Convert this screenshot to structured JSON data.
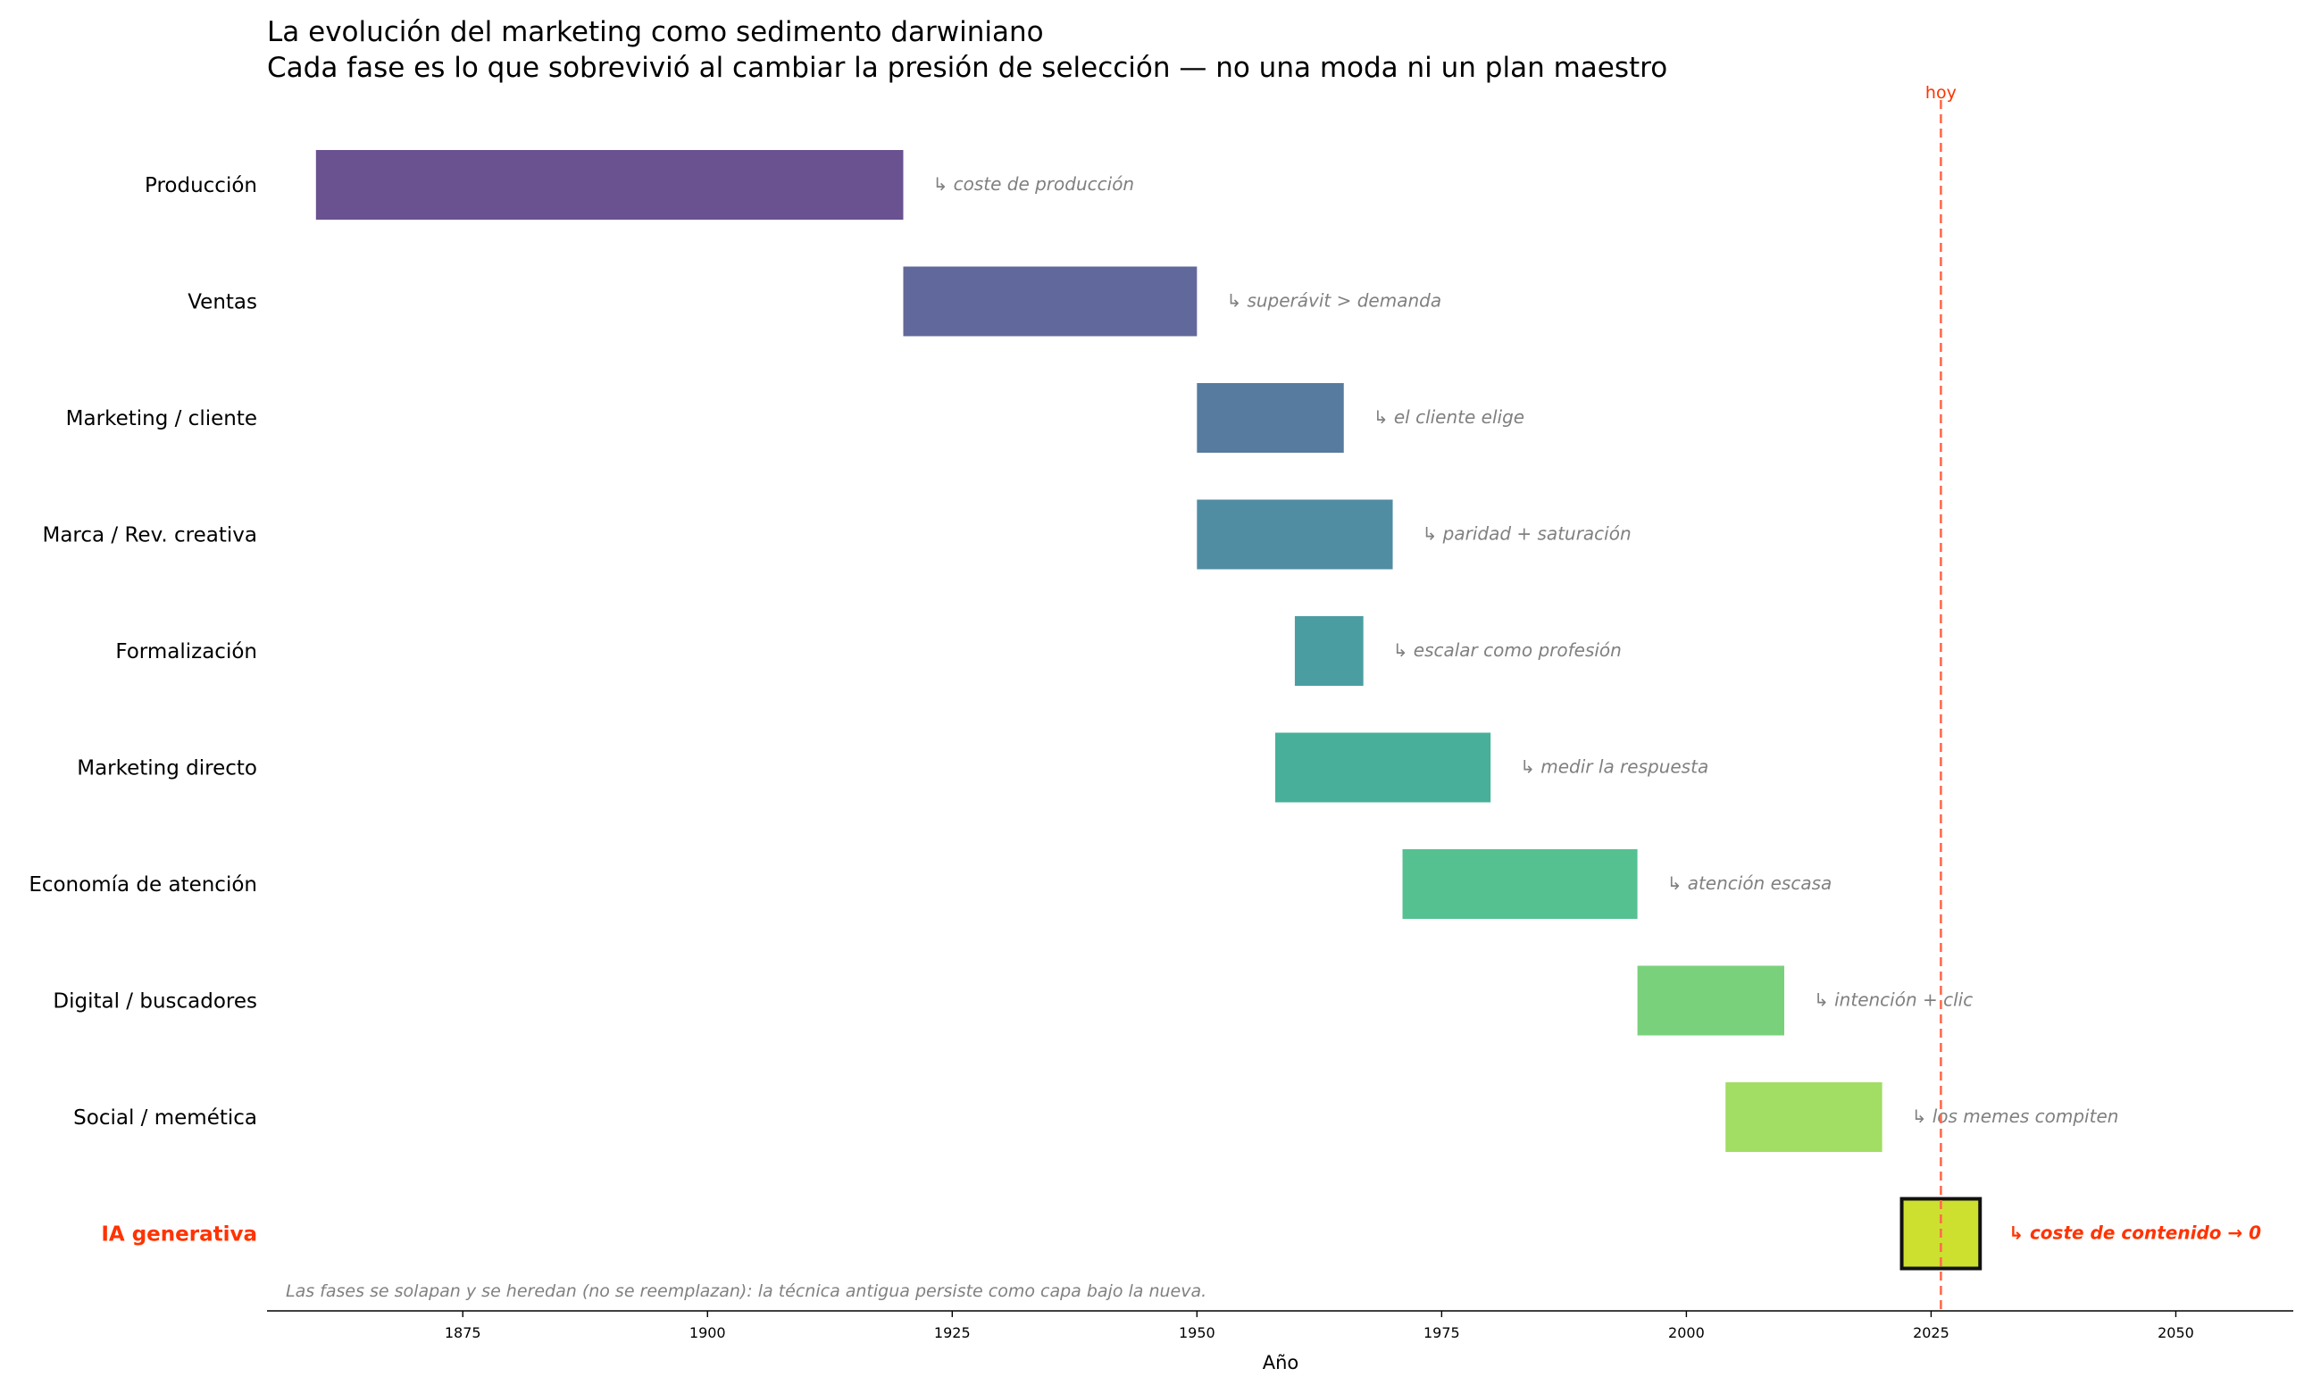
{
  "chart_data": {
    "type": "bar",
    "orientation": "horizontal-gantt",
    "title": "La evolución del marketing como sedimento darwiniano",
    "subtitle": "Cada fase es lo que sobrevivió al cambiar la presión de selección — no una moda ni un plan maestro",
    "xlabel": "Año",
    "ylabel": "",
    "xlim": [
      1855,
      2062
    ],
    "xticks": [
      "1875",
      "1900",
      "1925",
      "1950",
      "1975",
      "2000",
      "2025",
      "2050"
    ],
    "grid": false,
    "phases": [
      {
        "name": "Producción",
        "start": 1860,
        "end": 1920,
        "pressure": "↳ coste de producción",
        "color": "#6a5190"
      },
      {
        "name": "Ventas",
        "start": 1920,
        "end": 1950,
        "pressure": "↳ superávit > demanda",
        "color": "#61689b"
      },
      {
        "name": "Marketing / cliente",
        "start": 1950,
        "end": 1965,
        "pressure": "↳ el cliente elige",
        "color": "#577b9f"
      },
      {
        "name": "Marca / Rev. creativa",
        "start": 1950,
        "end": 1970,
        "pressure": "↳ paridad + saturación",
        "color": "#508da3"
      },
      {
        "name": "Formalización",
        "start": 1960,
        "end": 1967,
        "pressure": "↳ escalar como profesión",
        "color": "#4a9ea1"
      },
      {
        "name": "Marketing directo",
        "start": 1958,
        "end": 1980,
        "pressure": "↳ medir la respuesta",
        "color": "#48b09a"
      },
      {
        "name": "Economía de atención",
        "start": 1971,
        "end": 1995,
        "pressure": "↳ atención escasa",
        "color": "#56c190"
      },
      {
        "name": "Digital / buscadores",
        "start": 1995,
        "end": 2010,
        "pressure": "↳ intención + clic",
        "color": "#79d17c"
      },
      {
        "name": "Social / memética",
        "start": 2004,
        "end": 2020,
        "pressure": "↳ los memes compiten",
        "color": "#a2dd64"
      },
      {
        "name": "IA generativa",
        "start": 2022,
        "end": 2030,
        "pressure": "↳ coste de contenido → 0",
        "color": "#cde02f",
        "highlight": true
      }
    ],
    "today": {
      "year": 2026,
      "label": "hoy",
      "color": "#ff6a4d"
    },
    "note": "Las fases se solapan y se heredan (no se reemplazan): la técnica antigua persiste como capa bajo la nueva.",
    "highlight_color": "#ff3300"
  }
}
